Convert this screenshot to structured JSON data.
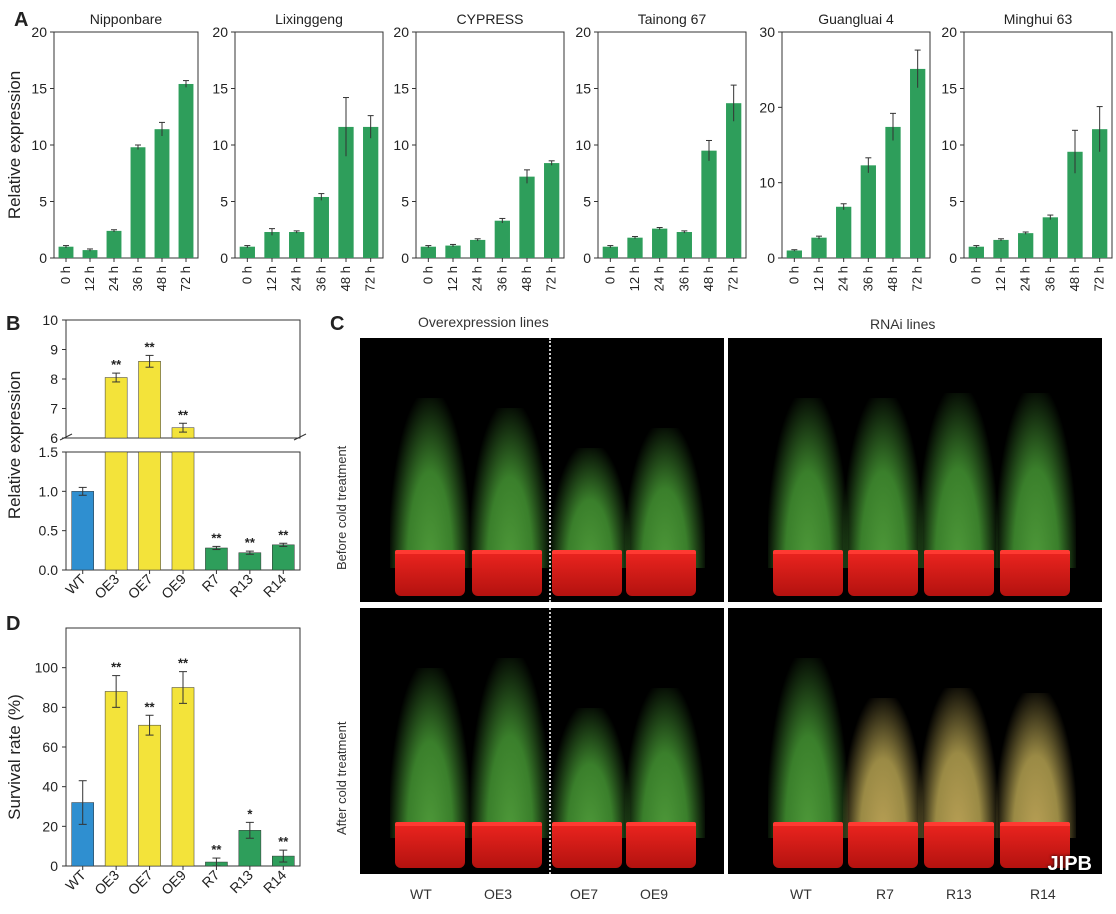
{
  "panel_letters": {
    "a": "A",
    "b": "B",
    "c": "C",
    "d": "D"
  },
  "colors": {
    "green": "#2e9e5b",
    "yellow": "#f3e33a",
    "blue": "#2f8fd0"
  },
  "watermark": "JIPB",
  "panel_c": {
    "overexpression_title": "Overexpression lines",
    "rnai_title": "RNAi lines",
    "row_before": "Before cold treatment",
    "row_after": "After cold treatment",
    "labels": [
      "WT",
      "OE3",
      "OE7",
      "OE9",
      "WT",
      "R7",
      "R13",
      "R14"
    ]
  },
  "chart_data": [
    {
      "panel": "A",
      "type": "bar",
      "title": "Nipponbare",
      "ylabel": "Relative expression",
      "categories": [
        "0 h",
        "12 h",
        "24 h",
        "36 h",
        "48 h",
        "72 h"
      ],
      "values": [
        1.0,
        0.7,
        2.4,
        9.8,
        11.4,
        15.4
      ],
      "errors": [
        0.1,
        0.1,
        0.1,
        0.2,
        0.6,
        0.3
      ],
      "ylim": [
        0,
        20
      ],
      "yticks": [
        0,
        5,
        10,
        15,
        20
      ]
    },
    {
      "panel": "A",
      "type": "bar",
      "title": "Lixinggeng",
      "ylabel": "",
      "categories": [
        "0 h",
        "12 h",
        "24 h",
        "36 h",
        "48 h",
        "72 h"
      ],
      "values": [
        1.0,
        2.3,
        2.3,
        5.4,
        11.6,
        11.6
      ],
      "errors": [
        0.1,
        0.3,
        0.1,
        0.3,
        2.6,
        1.0
      ],
      "ylim": [
        0,
        20
      ],
      "yticks": [
        0,
        5,
        10,
        15,
        20
      ]
    },
    {
      "panel": "A",
      "type": "bar",
      "title": "CYPRESS",
      "ylabel": "",
      "categories": [
        "0 h",
        "12 h",
        "24 h",
        "36 h",
        "48 h",
        "72 h"
      ],
      "values": [
        1.0,
        1.1,
        1.6,
        3.3,
        7.2,
        8.4
      ],
      "errors": [
        0.1,
        0.1,
        0.1,
        0.2,
        0.6,
        0.2
      ],
      "ylim": [
        0,
        20
      ],
      "yticks": [
        0,
        5,
        10,
        15,
        20
      ]
    },
    {
      "panel": "A",
      "type": "bar",
      "title": "Tainong 67",
      "ylabel": "",
      "categories": [
        "0 h",
        "12 h",
        "24 h",
        "36 h",
        "48 h",
        "72 h"
      ],
      "values": [
        1.0,
        1.8,
        2.6,
        2.3,
        9.5,
        13.7
      ],
      "errors": [
        0.1,
        0.1,
        0.1,
        0.1,
        0.9,
        1.6
      ],
      "ylim": [
        0,
        20
      ],
      "yticks": [
        0,
        5,
        10,
        15,
        20
      ]
    },
    {
      "panel": "A",
      "type": "bar",
      "title": "Guangluai 4",
      "ylabel": "",
      "categories": [
        "0 h",
        "12 h",
        "24 h",
        "36 h",
        "48 h",
        "72 h"
      ],
      "values": [
        1.0,
        2.7,
        6.8,
        12.3,
        17.4,
        25.1
      ],
      "errors": [
        0.1,
        0.2,
        0.4,
        1.0,
        1.8,
        2.5
      ],
      "ylim": [
        0,
        30
      ],
      "yticks": [
        0,
        10,
        20,
        30
      ]
    },
    {
      "panel": "A",
      "type": "bar",
      "title": "Minghui 63",
      "ylabel": "",
      "categories": [
        "0 h",
        "12 h",
        "24 h",
        "36 h",
        "48 h",
        "72 h"
      ],
      "values": [
        1.0,
        1.6,
        2.2,
        3.6,
        9.4,
        11.4
      ],
      "errors": [
        0.1,
        0.1,
        0.1,
        0.2,
        1.9,
        2.0
      ],
      "ylim": [
        0,
        20
      ],
      "yticks": [
        0,
        5,
        10,
        15,
        20
      ]
    },
    {
      "panel": "B",
      "type": "bar",
      "ylabel": "Relative expression",
      "categories": [
        "WT",
        "OE3",
        "OE7",
        "OE9",
        "R7",
        "R13",
        "R14"
      ],
      "values": [
        1.0,
        8.05,
        8.6,
        6.35,
        0.28,
        0.22,
        0.32
      ],
      "errors": [
        0.05,
        0.15,
        0.2,
        0.15,
        0.02,
        0.02,
        0.02
      ],
      "significance": [
        "",
        "**",
        "**",
        "**",
        "**",
        "**",
        "**"
      ],
      "bar_colors": [
        "blue",
        "yellow",
        "yellow",
        "yellow",
        "green",
        "green",
        "green"
      ],
      "broken_axis": true,
      "ylim_lower": [
        0,
        1.5
      ],
      "yticks_lower": [
        "0.0",
        "0.5",
        "1.0",
        "1.5"
      ],
      "ylim_upper": [
        6,
        10
      ],
      "yticks_upper": [
        "6",
        "7",
        "8",
        "9",
        "10"
      ]
    },
    {
      "panel": "D",
      "type": "bar",
      "ylabel": "Survival rate (%)",
      "categories": [
        "WT",
        "OE3",
        "OE7",
        "OE9",
        "R7",
        "R13",
        "R14"
      ],
      "values": [
        32,
        88,
        71,
        90,
        2,
        18,
        5
      ],
      "errors": [
        11,
        8,
        5,
        8,
        2,
        4,
        3
      ],
      "significance": [
        "",
        "**",
        "**",
        "**",
        "**",
        "*",
        "**"
      ],
      "bar_colors": [
        "blue",
        "yellow",
        "yellow",
        "yellow",
        "green",
        "green",
        "green"
      ],
      "ylim": [
        0,
        120
      ],
      "yticks": [
        0,
        20,
        40,
        60,
        80,
        100
      ]
    }
  ]
}
